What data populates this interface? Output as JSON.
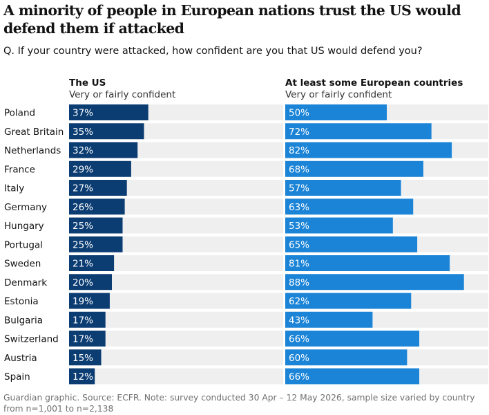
{
  "headline": "A minority of people in European nations trust the US would defend them if attacked",
  "standfirst": "Q. If your country were attacked, how confident are you that US would defend you?",
  "footer": "Guardian graphic. Source: ECFR. Note: survey conducted 30 Apr – 12 May 2026, sample size varied by country from n=1,001 to n=2,138",
  "colors": {
    "us_bar": "#0b3d73",
    "europe_bar": "#1b84d7",
    "track": "#efefef",
    "bar_label": "#ffffff"
  },
  "chart_data": {
    "type": "bar",
    "orientation": "horizontal",
    "categories": [
      "Poland",
      "Great Britain",
      "Netherlands",
      "France",
      "Italy",
      "Germany",
      "Hungary",
      "Portugal",
      "Sweden",
      "Denmark",
      "Estonia",
      "Bulgaria",
      "Switzerland",
      "Austria",
      "Spain"
    ],
    "unit": "%",
    "xlim": [
      0,
      100
    ],
    "grid": false,
    "legend": "none",
    "series": [
      {
        "name": "The US",
        "subtitle": "Very or fairly confident",
        "values": [
          37,
          35,
          32,
          29,
          27,
          26,
          25,
          25,
          21,
          20,
          19,
          17,
          17,
          15,
          12
        ]
      },
      {
        "name": "At least some European countries",
        "subtitle": "Very or fairly confident",
        "values": [
          50,
          72,
          82,
          68,
          57,
          63,
          53,
          65,
          81,
          88,
          62,
          43,
          66,
          60,
          66
        ]
      }
    ]
  }
}
